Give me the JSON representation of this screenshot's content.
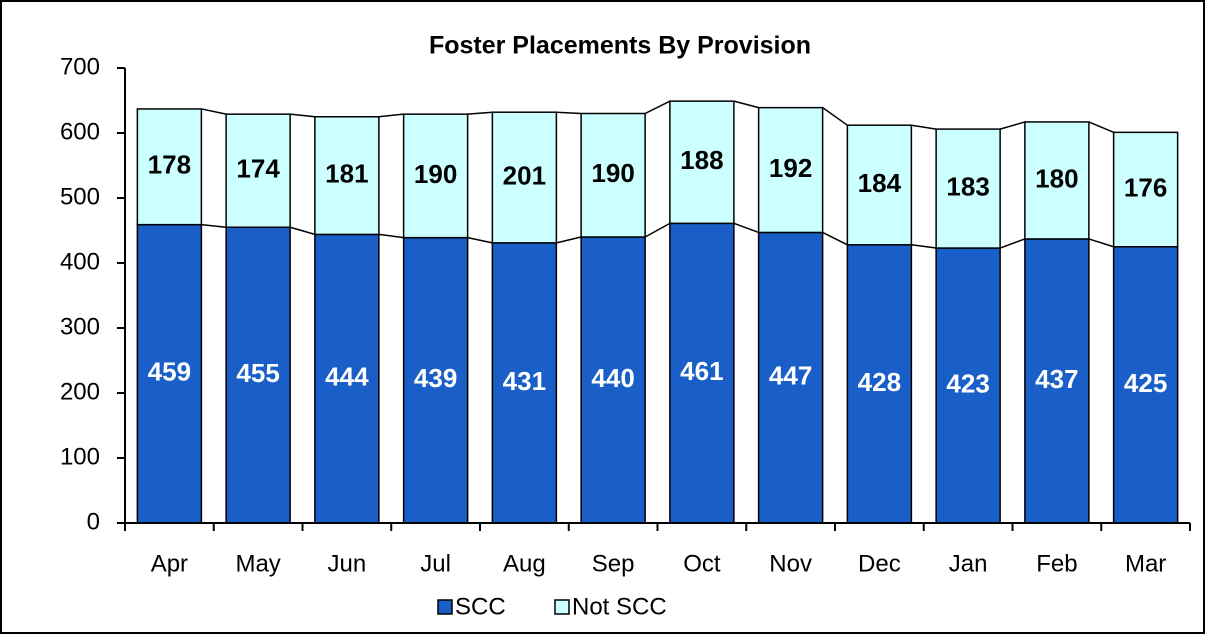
{
  "chart_data": {
    "type": "stacked_bar",
    "title": "Foster Placements By Provision",
    "categories": [
      "Apr",
      "May",
      "Jun",
      "Jul",
      "Aug",
      "Sep",
      "Oct",
      "Nov",
      "Dec",
      "Jan",
      "Feb",
      "Mar"
    ],
    "series": [
      {
        "name": "SCC",
        "color": "#1a5fc8",
        "values": [
          459,
          455,
          444,
          439,
          431,
          440,
          461,
          447,
          428,
          423,
          437,
          425
        ]
      },
      {
        "name": "Not SCC",
        "color": "#ccffff",
        "values": [
          178,
          174,
          181,
          190,
          201,
          190,
          188,
          192,
          184,
          183,
          180,
          176
        ]
      }
    ],
    "ylim": [
      0,
      700
    ],
    "yticks": [
      0,
      100,
      200,
      300,
      400,
      500,
      600,
      700
    ],
    "grid": false,
    "legend": "bottom"
  }
}
